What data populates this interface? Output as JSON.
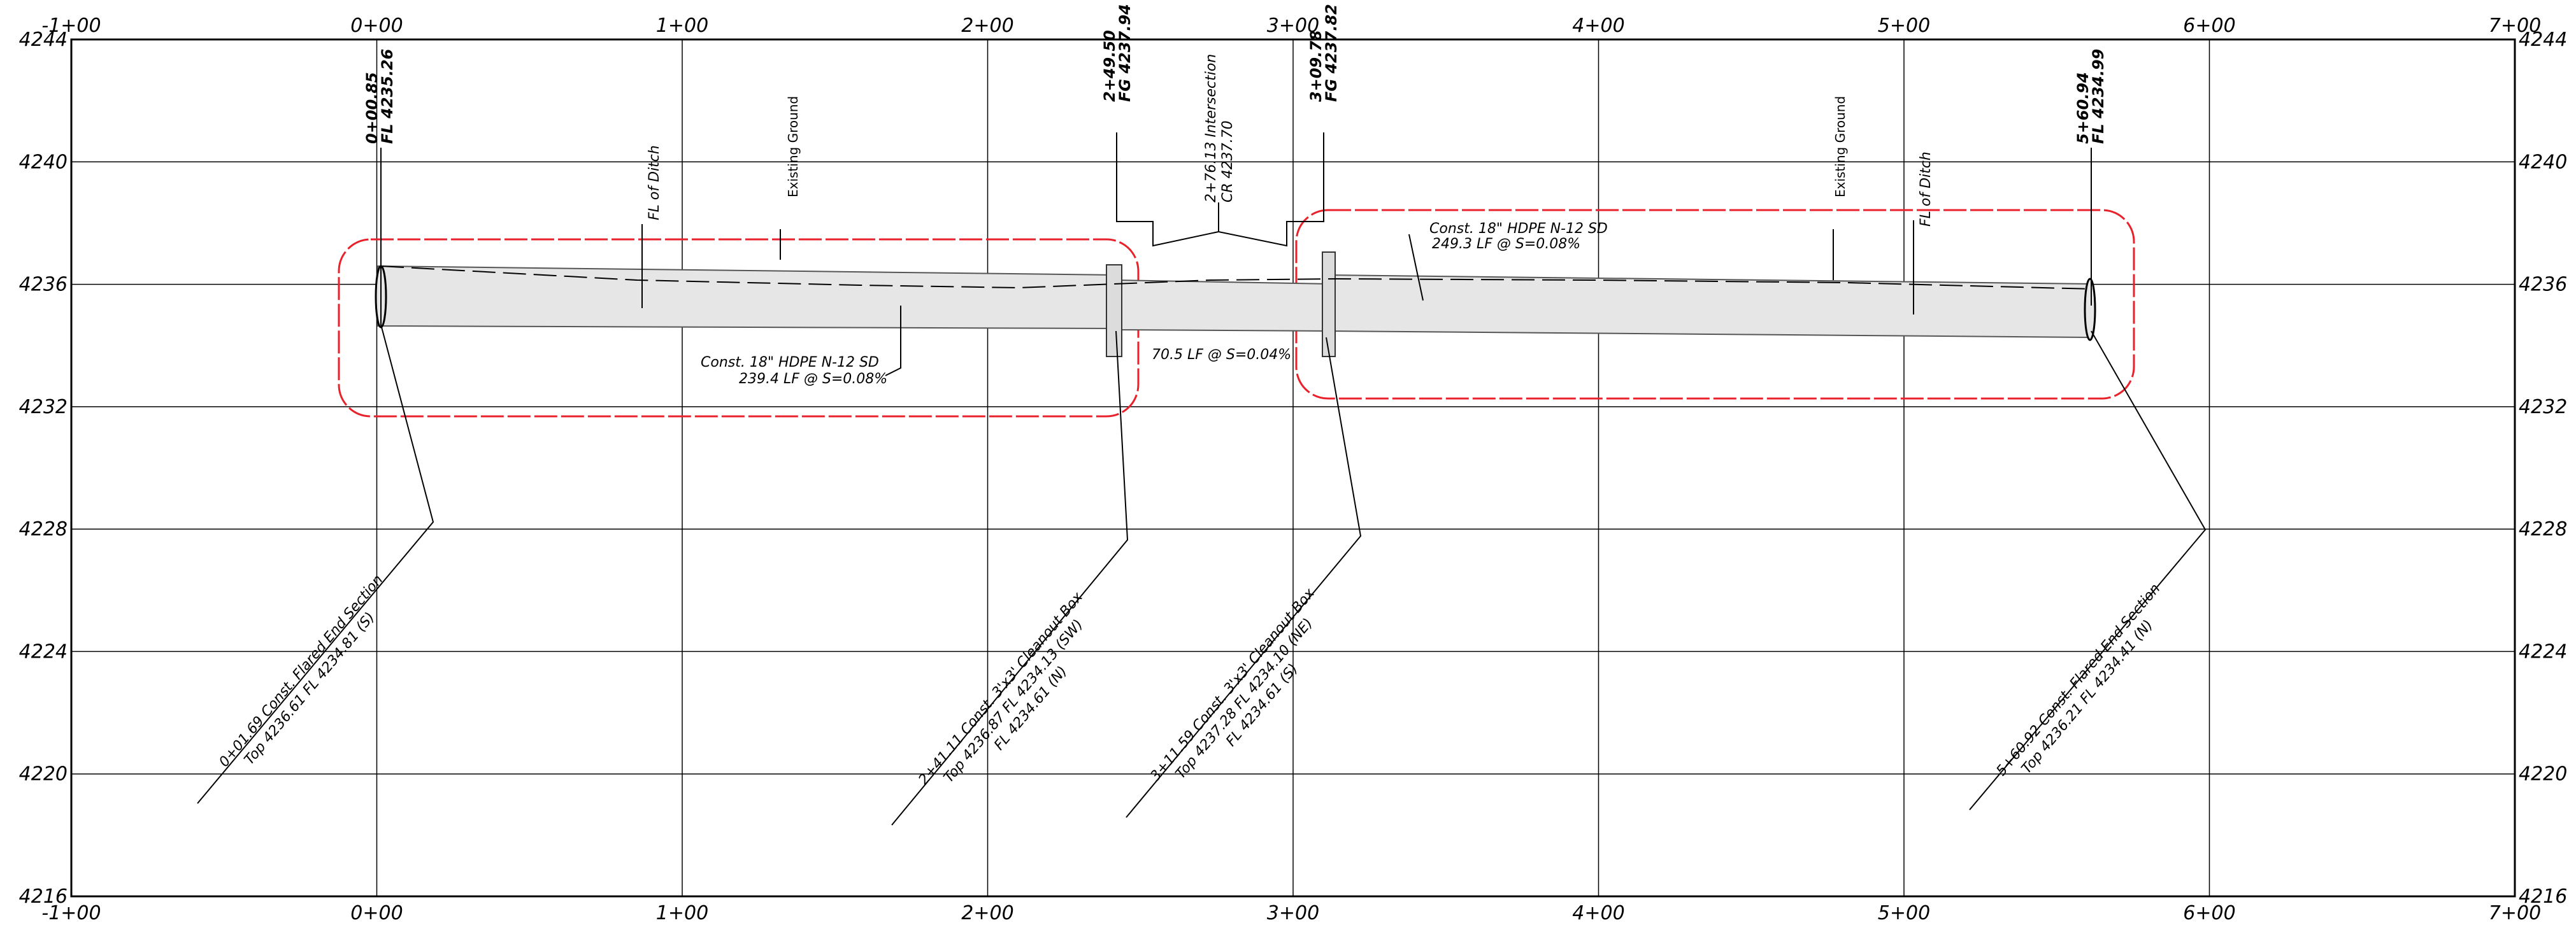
{
  "profile": {
    "x_ticks": [
      "-1+00",
      "0+00",
      "1+00",
      "2+00",
      "3+00",
      "4+00",
      "5+00",
      "6+00",
      "7+00"
    ],
    "y_ticks": [
      "4216",
      "4220",
      "4224",
      "4228",
      "4232",
      "4236",
      "4240",
      "4244"
    ],
    "x_range": [
      -100,
      700
    ],
    "y_range": [
      4216,
      4244
    ],
    "colors": {
      "grid": "#000000",
      "pipe_fill": "#e6e6e6",
      "cloud": "#e8212b",
      "text": "#000000"
    },
    "vertical_callouts": [
      {
        "lines": [
          "0+00.85",
          "FL  4235.26"
        ]
      },
      {
        "lines": [
          "FL  of  Ditch"
        ]
      },
      {
        "lines": [
          "Existing  Ground"
        ]
      },
      {
        "lines": [
          "2+49.50",
          "FG  4237.94"
        ]
      },
      {
        "lines": [
          "2+76.13  Intersection",
          "CR  4237.70"
        ]
      },
      {
        "lines": [
          "3+09.78",
          "FG  4237.82"
        ]
      },
      {
        "lines": [
          "Existing  Ground"
        ]
      },
      {
        "lines": [
          "FL  of  Ditch"
        ]
      },
      {
        "lines": [
          "5+60.94",
          "FL  4234.99"
        ]
      }
    ],
    "pipe_notes": [
      {
        "lines": [
          "Const.  18\"  HDPE  N-12  SD",
          "239.4  LF  @  S=0.08%"
        ]
      },
      {
        "lines": [
          "70.5  LF  @  S=0.04%"
        ]
      },
      {
        "lines": [
          "Const.  18\"  HDPE  N-12  SD",
          "249.3  LF  @  S=0.08%"
        ]
      }
    ],
    "structure_notes": [
      {
        "lines": [
          "0+01.69  Const.  Flared  End  Section",
          "Top  4236.61   FL  4234.81  (S)"
        ]
      },
      {
        "lines": [
          "2+41.11  Const.  3'x3'  Cleanout  Box",
          "Top  4236.87   FL  4234.13  (SW)",
          "FL  4234.61  (N)"
        ]
      },
      {
        "lines": [
          "3+11.59  Const.  3'x3'  Cleanout  Box",
          "Top  4237.28   FL  4234.10  (NE)",
          "FL  4234.61  (S)"
        ]
      },
      {
        "lines": [
          "5+60.92  Const.  Flared  End  Section",
          "Top  4236.21   FL  4234.41  (N)"
        ]
      }
    ]
  }
}
